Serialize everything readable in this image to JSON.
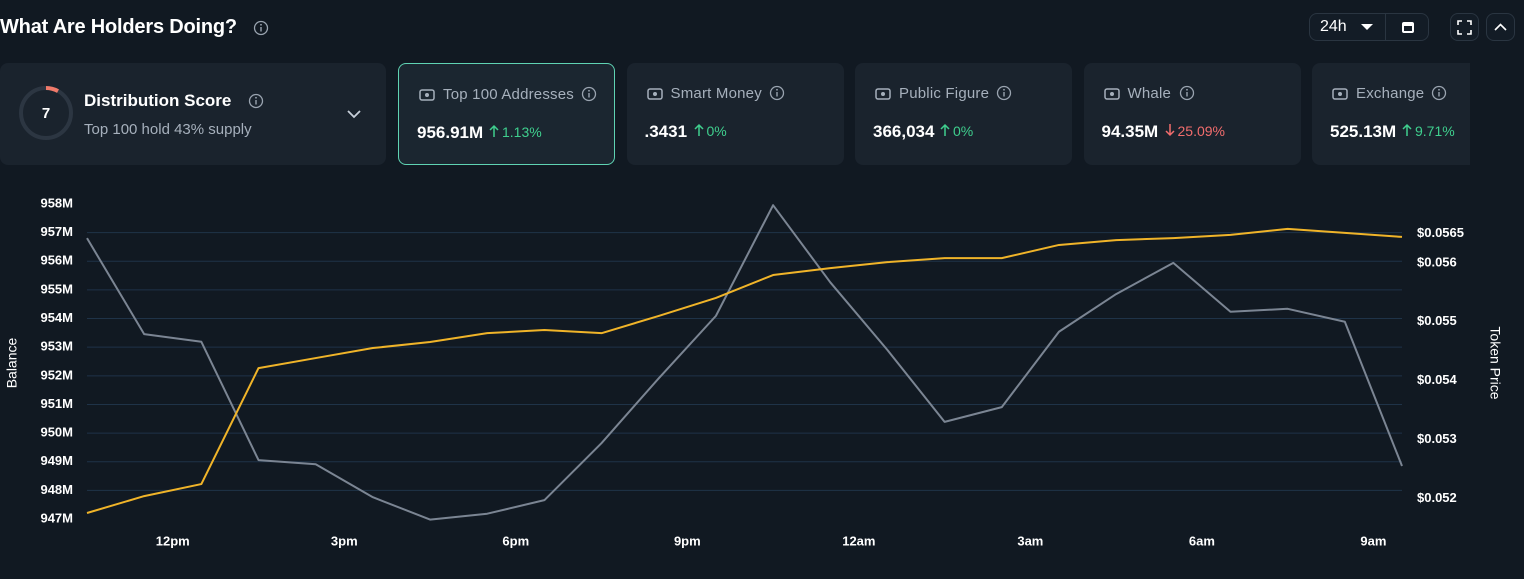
{
  "header": {
    "title": "What Are Holders Doing?",
    "timeframe": "24h"
  },
  "distribution": {
    "score": "7",
    "label": "Distribution Score",
    "subtitle": "Top 100 hold 43% supply"
  },
  "cards": [
    {
      "label": "Top 100 Addresses",
      "value": "956.91M",
      "change": "1.13%",
      "direction": "up",
      "selected": true
    },
    {
      "label": "Smart Money",
      "value": ".3431",
      "change": "0%",
      "direction": "up",
      "selected": false
    },
    {
      "label": "Public Figure",
      "value": "366,034",
      "change": "0%",
      "direction": "up",
      "selected": false
    },
    {
      "label": "Whale",
      "value": "94.35M",
      "change": "25.09%",
      "direction": "down",
      "selected": false
    },
    {
      "label": "Exchange",
      "value": "525.13M",
      "change": "9.71%",
      "direction": "up",
      "selected": false
    }
  ],
  "chart_data": {
    "type": "line",
    "ylabel": "Balance",
    "y2label": "Token Price",
    "x": [
      10.5,
      11.5,
      12.5,
      13.5,
      14.5,
      15.5,
      16.5,
      17.5,
      18.5,
      19.5,
      20.5,
      21.5,
      22.5,
      23.5,
      24.5,
      25.5,
      26.5,
      27.5,
      28.5,
      29.5,
      30.5,
      31.5,
      32.5,
      33.5
    ],
    "xlim": [
      10.5,
      33.5
    ],
    "xticks": [
      {
        "value": 12,
        "label": "12pm"
      },
      {
        "value": 15,
        "label": "3pm"
      },
      {
        "value": 18,
        "label": "6pm"
      },
      {
        "value": 21,
        "label": "9pm"
      },
      {
        "value": 24,
        "label": "12am"
      },
      {
        "value": 27,
        "label": "3am"
      },
      {
        "value": 30,
        "label": "6am"
      },
      {
        "value": 33,
        "label": "9am"
      }
    ],
    "ylim": [
      947,
      958
    ],
    "yticks": [
      {
        "value": 947,
        "label": "947M"
      },
      {
        "value": 948,
        "label": "948M"
      },
      {
        "value": 949,
        "label": "949M"
      },
      {
        "value": 950,
        "label": "950M"
      },
      {
        "value": 951,
        "label": "951M"
      },
      {
        "value": 952,
        "label": "952M"
      },
      {
        "value": 953,
        "label": "953M"
      },
      {
        "value": 954,
        "label": "954M"
      },
      {
        "value": 955,
        "label": "955M"
      },
      {
        "value": 956,
        "label": "956M"
      },
      {
        "value": 957,
        "label": "957M"
      },
      {
        "value": 958,
        "label": "958M"
      }
    ],
    "y2lim": [
      0.05165,
      0.057
    ],
    "y2ticks": [
      {
        "value": 0.052,
        "label": "$0.052"
      },
      {
        "value": 0.053,
        "label": "$0.053"
      },
      {
        "value": 0.054,
        "label": "$0.054"
      },
      {
        "value": 0.055,
        "label": "$0.055"
      },
      {
        "value": 0.056,
        "label": "$0.056"
      },
      {
        "value": 0.0565,
        "label": "$0.0565"
      }
    ],
    "grid": true,
    "series": [
      {
        "color": "#f0b429",
        "axis": "y",
        "values": [
          947.21,
          947.8,
          948.22,
          952.27,
          952.62,
          952.97,
          953.18,
          953.49,
          953.6,
          953.49,
          954.09,
          954.72,
          955.52,
          955.76,
          955.97,
          956.11,
          956.11,
          956.57,
          956.74,
          956.81,
          956.92,
          957.13,
          956.99,
          956.85
        ]
      },
      {
        "color": "#7b8593",
        "axis": "y2",
        "values": [
          0.05642,
          0.05479,
          0.05466,
          0.05265,
          0.05258,
          0.05202,
          0.05164,
          0.05174,
          0.05197,
          0.05294,
          0.05404,
          0.0551,
          0.05698,
          0.05567,
          0.05452,
          0.0533,
          0.05355,
          0.05483,
          0.05547,
          0.056,
          0.05517,
          0.05522,
          0.055,
          0.05255
        ]
      }
    ]
  }
}
